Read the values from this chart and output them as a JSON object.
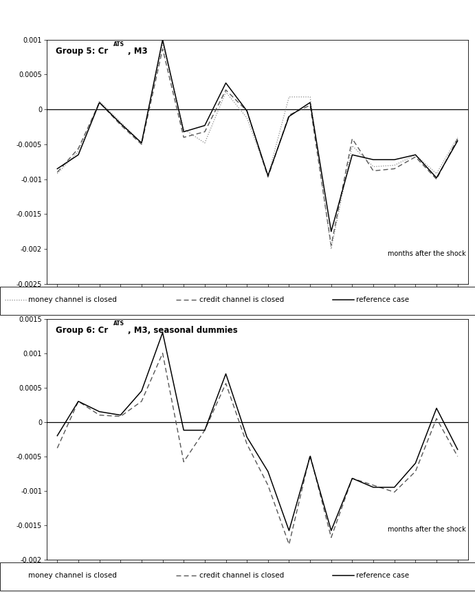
{
  "chart1": {
    "title_text": "Group 5: Cr",
    "title_super": "ATS",
    "title_after": ", M3",
    "xlabel": "months after the shock",
    "ylim": [
      -0.0025,
      0.001
    ],
    "yticks": [
      -0.0025,
      -0.002,
      -0.0015,
      -0.001,
      -0.0005,
      0.0,
      0.0005,
      0.001
    ],
    "xticks": [
      1,
      2,
      3,
      4,
      5,
      6,
      7,
      8,
      9,
      10,
      11,
      12,
      13,
      14,
      15,
      16,
      17,
      18,
      19,
      20
    ],
    "reference": [
      -0.00085,
      -0.00065,
      0.0001,
      -0.0002,
      -0.00048,
      0.001,
      -0.00032,
      -0.00023,
      0.00038,
      -2e-05,
      -0.00095,
      -0.0001,
      0.0001,
      -0.00175,
      -0.00065,
      -0.00072,
      -0.00072,
      -0.00065,
      -0.00098,
      -0.00045
    ],
    "money": [
      -0.00092,
      -0.0006,
      0.00012,
      -0.00018,
      -0.00048,
      0.00095,
      -0.00028,
      -0.00048,
      0.00025,
      -0.00012,
      -0.00095,
      0.00018,
      0.00018,
      -0.002,
      -0.00052,
      -0.00082,
      -0.0008,
      -0.00065,
      -0.00092,
      -0.0004
    ],
    "credit": [
      -0.0009,
      -0.00056,
      0.0001,
      -0.00022,
      -0.0005,
      0.00087,
      -0.0004,
      -0.00032,
      0.00028,
      -2e-05,
      -0.00097,
      -8e-05,
      6e-05,
      -0.00195,
      -0.00042,
      -0.00088,
      -0.00085,
      -0.00068,
      -0.001,
      -0.00042
    ]
  },
  "chart2": {
    "title_text": "Group 6: Cr",
    "title_super": "ATS",
    "title_after": ", M3, seasonal dummies",
    "xlabel": "months after the shock",
    "ylim": [
      -0.002,
      0.0015
    ],
    "yticks": [
      -0.002,
      -0.0015,
      -0.001,
      -0.0005,
      0.0,
      0.0005,
      0.001,
      0.0015
    ],
    "xticks": [
      1,
      2,
      3,
      4,
      5,
      6,
      7,
      8,
      9,
      10,
      11,
      12,
      13,
      14,
      15,
      16,
      17,
      18,
      19,
      20
    ],
    "reference": [
      -0.0002,
      0.0003,
      0.00015,
      0.0001,
      0.00045,
      0.0013,
      -0.00012,
      -0.00012,
      0.0007,
      -0.00022,
      -0.00072,
      -0.00158,
      -0.0005,
      -0.00158,
      -0.00082,
      -0.00095,
      -0.00095,
      -0.0006,
      0.0002,
      -0.0004
    ],
    "credit": [
      -0.00038,
      0.0003,
      0.0001,
      8e-05,
      0.0003,
      0.001,
      -0.00058,
      -0.00012,
      0.00056,
      -0.00032,
      -0.00092,
      -0.00178,
      -0.00048,
      -0.00168,
      -0.00082,
      -0.00092,
      -0.00102,
      -0.00072,
      5e-05,
      -0.0005
    ]
  },
  "legend_money": "money channel is closed",
  "legend_credit": "credit channel is closed",
  "legend_ref": "reference case"
}
